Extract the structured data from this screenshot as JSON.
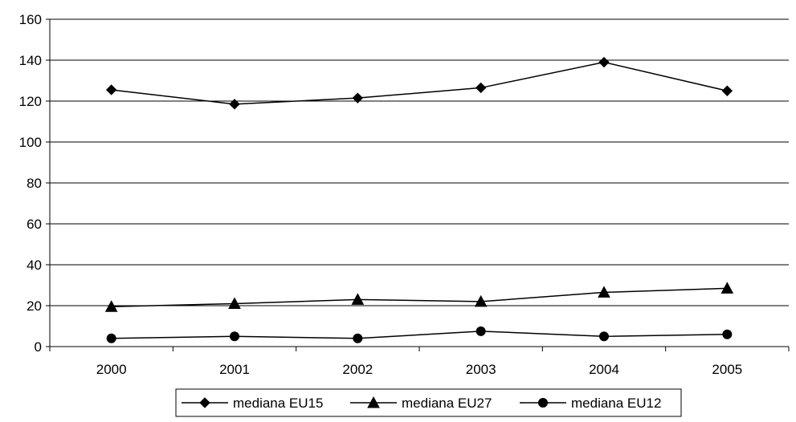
{
  "chart_data": {
    "type": "line",
    "categories": [
      "2000",
      "2001",
      "2002",
      "2003",
      "2004",
      "2005"
    ],
    "series": [
      {
        "name": "mediana EU15",
        "marker": "diamond",
        "values": [
          125.5,
          118.5,
          121.5,
          126.5,
          139,
          125
        ]
      },
      {
        "name": "mediana EU27",
        "marker": "triangle",
        "values": [
          19.5,
          21,
          23,
          22,
          26.5,
          28.5
        ]
      },
      {
        "name": "mediana EU12",
        "marker": "circle",
        "values": [
          4,
          5,
          4,
          7.5,
          5,
          6
        ]
      }
    ],
    "ylim": [
      0,
      160
    ],
    "yticks": [
      "0",
      "20",
      "40",
      "60",
      "80",
      "100",
      "120",
      "140",
      "160"
    ],
    "ytick_values": [
      0,
      20,
      40,
      60,
      80,
      100,
      120,
      140,
      160
    ],
    "grid": true,
    "legend_position": "bottom-center",
    "colors": {
      "line": "#000000",
      "grid": "#000000",
      "background": "#ffffff"
    }
  }
}
